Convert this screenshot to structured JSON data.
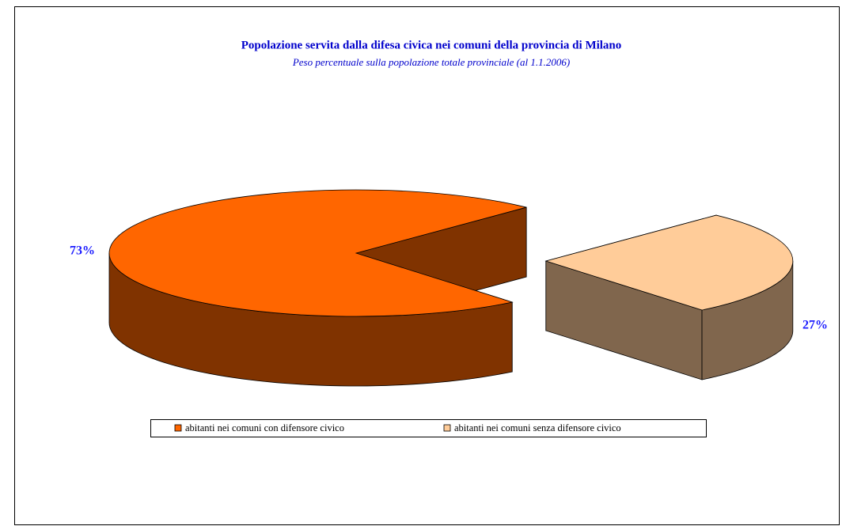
{
  "chart_data": {
    "type": "pie",
    "title": "Popolazione servita dalla difesa civica nei comuni della provincia di Milano",
    "subtitle": "Peso percentuale sulla popolazione totale provinciale (al 1.1.2006)",
    "categories": [
      "abitanti nei comuni con difensore civico",
      "abitanti nei comuni senza difensore civico"
    ],
    "values": [
      73,
      27
    ],
    "value_labels": [
      "73%",
      "27%"
    ],
    "colors": [
      "#ff6600",
      "#ffcc99"
    ],
    "legend": "bottom"
  }
}
